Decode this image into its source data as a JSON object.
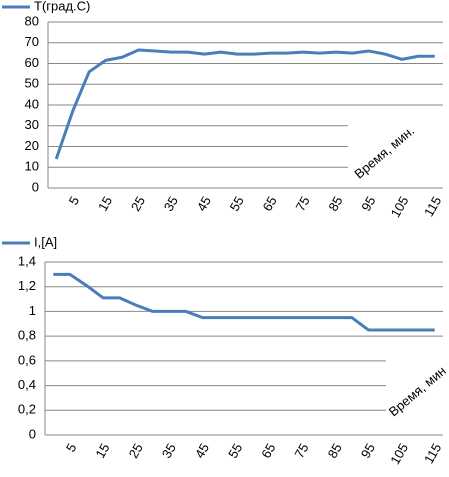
{
  "chart_data": [
    {
      "type": "line",
      "x_label": "Время, мин.",
      "categories": [
        null,
        "5",
        null,
        "15",
        null,
        "25",
        null,
        "35",
        null,
        "45",
        null,
        "55",
        null,
        "65",
        null,
        "75",
        null,
        "85",
        null,
        "95",
        null,
        "105",
        null,
        "115"
      ],
      "series": [
        {
          "name": "T(град.С)",
          "color": "#4a7ebb",
          "values": [
            14,
            37,
            56,
            61.5,
            63,
            66.5,
            66,
            65.5,
            65.5,
            64.5,
            65.5,
            64.5,
            64.5,
            65,
            65,
            65.5,
            65,
            65.5,
            65,
            66,
            64.5,
            62,
            63.5,
            63.5
          ]
        }
      ],
      "ylim": [
        0,
        80
      ],
      "yticks": [
        0,
        10,
        20,
        30,
        40,
        50,
        60,
        70,
        80
      ],
      "grid": true,
      "legend": "top-left"
    },
    {
      "type": "line",
      "x_label": "Время, мин",
      "categories": [
        null,
        "5",
        null,
        "15",
        null,
        "25",
        null,
        "35",
        null,
        "45",
        null,
        "55",
        null,
        "65",
        null,
        "75",
        null,
        "85",
        null,
        "95",
        null,
        "105",
        null,
        "115"
      ],
      "series": [
        {
          "name": "I,[A]",
          "color": "#4a7ebb",
          "values": [
            1.3,
            1.3,
            1.21,
            1.11,
            1.11,
            1.05,
            1.0,
            1.0,
            1.0,
            0.95,
            0.95,
            0.95,
            0.95,
            0.95,
            0.95,
            0.95,
            0.95,
            0.95,
            0.95,
            0.85,
            0.85,
            0.85,
            0.85,
            0.85
          ]
        }
      ],
      "ylim": [
        0,
        1.4
      ],
      "yticks": [
        0,
        {
          "value": 0.2,
          "label": "0,2"
        },
        {
          "value": 0.4,
          "label": "0,4"
        },
        {
          "value": 0.6,
          "label": "0,6"
        },
        {
          "value": 0.8,
          "label": "0,8"
        },
        1,
        {
          "value": 1.2,
          "label": "1,2"
        },
        {
          "value": 1.4,
          "label": "1,4"
        }
      ],
      "grid": true,
      "legend": "top-left"
    }
  ]
}
